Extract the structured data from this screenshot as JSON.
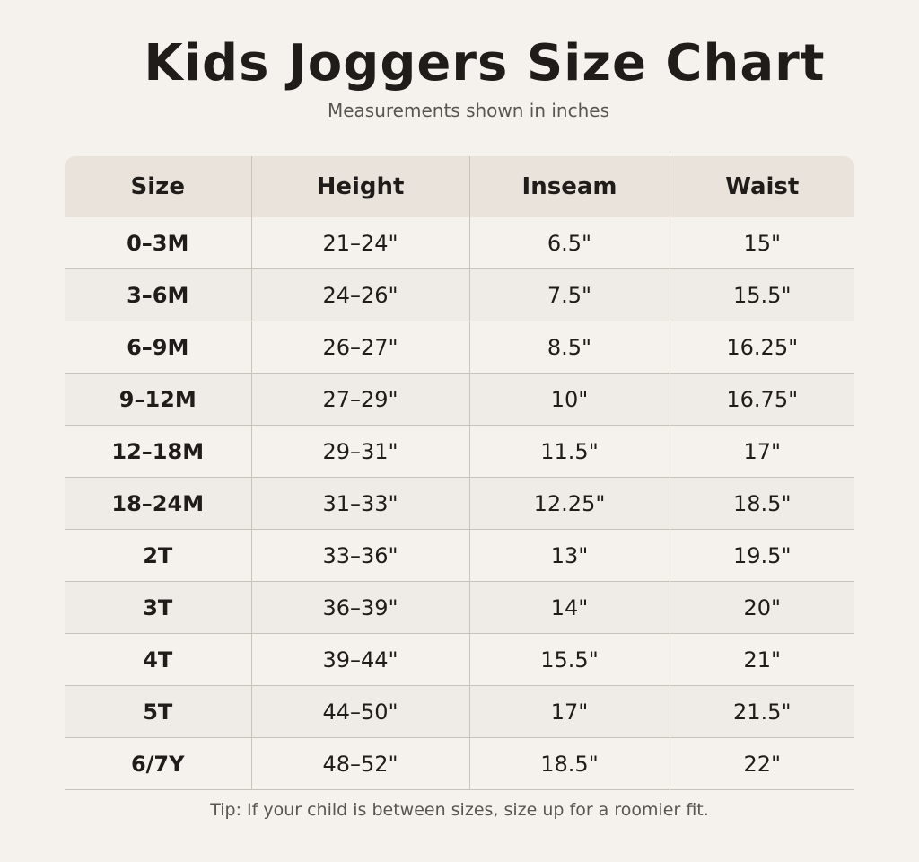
{
  "header": {
    "title": "Kids Joggers Size Chart",
    "subtitle": "Measurements shown in inches"
  },
  "table": {
    "columns": [
      "Size",
      "Height",
      "Inseam",
      "Waist"
    ],
    "rows": [
      [
        "0–3M",
        "21–24\"",
        "6.5\"",
        "15\""
      ],
      [
        "3–6M",
        "24–26\"",
        "7.5\"",
        "15.5\""
      ],
      [
        "6–9M",
        "26–27\"",
        "8.5\"",
        "16.25\""
      ],
      [
        "9–12M",
        "27–29\"",
        "10\"",
        "16.75\""
      ],
      [
        "12–18M",
        "29–31\"",
        "11.5\"",
        "17\""
      ],
      [
        "18–24M",
        "31–33\"",
        "12.25\"",
        "18.5\""
      ],
      [
        "2T",
        "33–36\"",
        "13\"",
        "19.5\""
      ],
      [
        "3T",
        "36–39\"",
        "14\"",
        "20\""
      ],
      [
        "4T",
        "39–44\"",
        "15.5\"",
        "21\""
      ],
      [
        "5T",
        "44–50\"",
        "17\"",
        "21.5\""
      ],
      [
        "6/7Y",
        "48–52\"",
        "18.5\"",
        "22\""
      ]
    ]
  },
  "footer": {
    "tip": "Tip: If your child is between sizes, size up for a roomier fit."
  }
}
